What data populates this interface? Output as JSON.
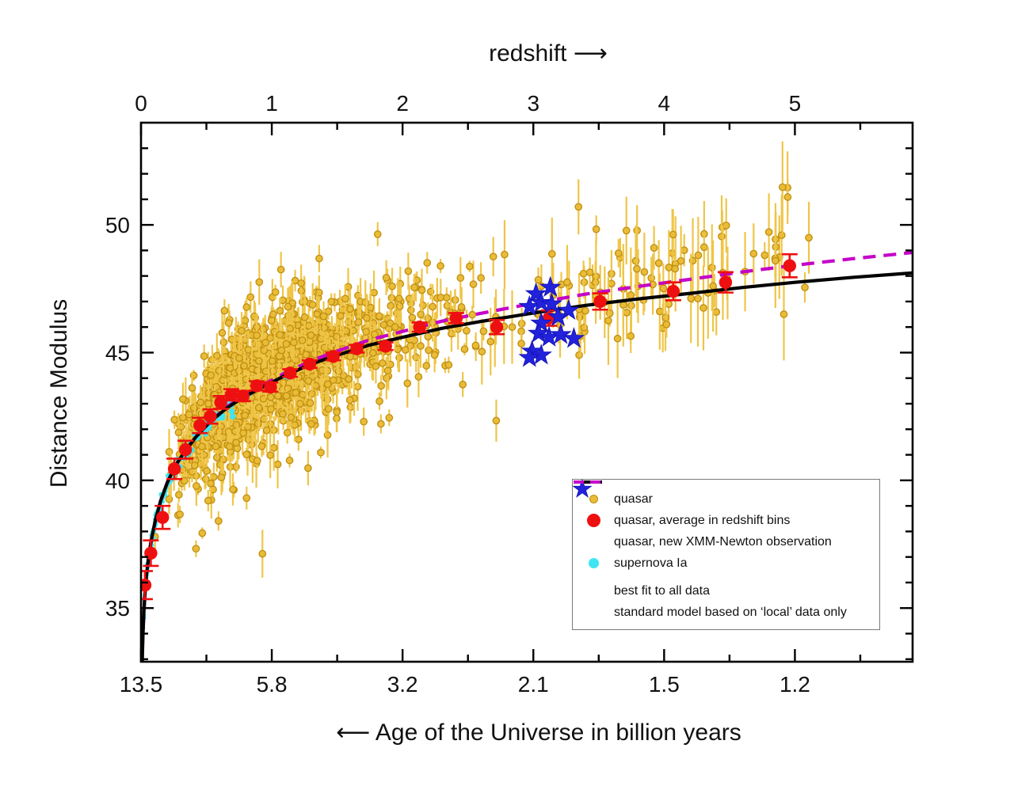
{
  "figure": {
    "top_axis_title": "redshift ⟶",
    "bottom_axis_title": "⟵  Age of the Universe in billion years",
    "y_axis_title": "Distance Modulus"
  },
  "legend": {
    "items": [
      {
        "label": "quasar",
        "marker": "small-dot",
        "color": "#E9BC38"
      },
      {
        "label": "quasar, average in redshift bins",
        "marker": "dot",
        "color": "#EE1010"
      },
      {
        "label": "quasar, new XMM-Newton observation",
        "marker": "star",
        "color": "#2222DD"
      },
      {
        "label": "supernova Ia",
        "marker": "dot",
        "color": "#3FE5F2"
      },
      {
        "label": "best fit to all data",
        "marker": "line",
        "color": "#000000"
      },
      {
        "label": "standard model based on ‘local’ data only",
        "marker": "dashed-line",
        "color": "#C400C8"
      }
    ]
  },
  "chart_data": {
    "type": "scatter",
    "title": "",
    "xlabel_top": "redshift",
    "xlabel_bottom": "Age of the Universe in billion years",
    "ylabel": "Distance Modulus",
    "xlim": [
      0,
      5.9
    ],
    "ylim": [
      32.9,
      54.0
    ],
    "grid": false,
    "legend_position": "lower right",
    "colors": {
      "quasar_fill": "#E9BC38",
      "quasar_edge": "#C08E10",
      "quasar_errbar": "#EFC548",
      "supernova": "#3FE5F2",
      "binned": "#EE1010",
      "star": "#2222DD",
      "star_edge": "#1515B8",
      "fit_line": "#000000",
      "standard_line": "#C400C8",
      "axis": "#000000"
    },
    "axes": {
      "top_ticks": [
        {
          "z": 0,
          "label": "0"
        },
        {
          "z": 1,
          "label": "1"
        },
        {
          "z": 2,
          "label": "2"
        },
        {
          "z": 3,
          "label": "3"
        },
        {
          "z": 4,
          "label": "4"
        },
        {
          "z": 5,
          "label": "5"
        }
      ],
      "bottom_ticks": [
        {
          "z": 0,
          "label": "13.5"
        },
        {
          "z": 1,
          "label": "5.8"
        },
        {
          "z": 2,
          "label": "3.2"
        },
        {
          "z": 3,
          "label": "2.1"
        },
        {
          "z": 4,
          "label": "1.5"
        },
        {
          "z": 5,
          "label": "1.2"
        }
      ],
      "x_minor": [
        0.5,
        1.5,
        2.5,
        3.5,
        4.5,
        5.5
      ],
      "y_major": [
        {
          "dm": 35,
          "label": "35"
        },
        {
          "dm": 40,
          "label": "40"
        },
        {
          "dm": 45,
          "label": "45"
        },
        {
          "dm": 50,
          "label": "50"
        }
      ],
      "y_minor_from": 33,
      "y_minor_to": 53
    },
    "fit_curve": {
      "name": "best fit to all data",
      "points": [
        [
          0.008,
          32.55
        ],
        [
          0.01,
          33.05
        ],
        [
          0.013,
          33.65
        ],
        [
          0.017,
          34.25
        ],
        [
          0.022,
          34.85
        ],
        [
          0.03,
          35.55
        ],
        [
          0.042,
          36.3
        ],
        [
          0.058,
          37.0
        ],
        [
          0.08,
          37.7
        ],
        [
          0.11,
          38.45
        ],
        [
          0.15,
          39.2
        ],
        [
          0.2,
          39.9
        ],
        [
          0.26,
          40.55
        ],
        [
          0.33,
          41.1
        ],
        [
          0.42,
          41.7
        ],
        [
          0.53,
          42.3
        ],
        [
          0.66,
          42.85
        ],
        [
          0.8,
          43.3
        ],
        [
          0.95,
          43.7
        ],
        [
          1.1,
          44.1
        ],
        [
          1.3,
          44.55
        ],
        [
          1.5,
          44.9
        ],
        [
          1.75,
          45.3
        ],
        [
          2.0,
          45.6
        ],
        [
          2.3,
          45.95
        ],
        [
          2.6,
          46.22
        ],
        [
          3.0,
          46.55
        ],
        [
          3.4,
          46.85
        ],
        [
          3.8,
          47.1
        ],
        [
          4.2,
          47.32
        ],
        [
          4.6,
          47.55
        ],
        [
          5.0,
          47.75
        ],
        [
          5.45,
          47.95
        ],
        [
          5.9,
          48.12
        ]
      ]
    },
    "standard_curve": {
      "name": "standard model based on 'local' data only",
      "points": [
        [
          0.008,
          32.55
        ],
        [
          0.01,
          33.05
        ],
        [
          0.013,
          33.65
        ],
        [
          0.017,
          34.25
        ],
        [
          0.022,
          34.85
        ],
        [
          0.03,
          35.55
        ],
        [
          0.042,
          36.3
        ],
        [
          0.058,
          37.0
        ],
        [
          0.08,
          37.7
        ],
        [
          0.11,
          38.45
        ],
        [
          0.15,
          39.2
        ],
        [
          0.2,
          39.9
        ],
        [
          0.26,
          40.55
        ],
        [
          0.33,
          41.1
        ],
        [
          0.42,
          41.7
        ],
        [
          0.53,
          42.32
        ],
        [
          0.66,
          42.89
        ],
        [
          0.8,
          43.36
        ],
        [
          0.95,
          43.78
        ],
        [
          1.1,
          44.2
        ],
        [
          1.3,
          44.68
        ],
        [
          1.5,
          45.06
        ],
        [
          1.75,
          45.5
        ],
        [
          2.0,
          45.83
        ],
        [
          2.3,
          46.23
        ],
        [
          2.6,
          46.54
        ],
        [
          3.0,
          46.93
        ],
        [
          3.4,
          47.29
        ],
        [
          3.8,
          47.59
        ],
        [
          4.2,
          47.87
        ],
        [
          4.6,
          48.16
        ],
        [
          5.0,
          48.42
        ],
        [
          5.45,
          48.68
        ],
        [
          5.9,
          48.92
        ]
      ]
    },
    "binned_quasars": {
      "name": "quasar, average in redshift bins",
      "points_z_dm_err": [
        [
          0.03,
          35.9,
          0.55
        ],
        [
          0.075,
          37.15,
          0.5
        ],
        [
          0.165,
          38.55,
          0.45
        ],
        [
          0.255,
          40.45,
          0.4
        ],
        [
          0.34,
          41.2,
          0.35
        ],
        [
          0.45,
          42.15,
          0.3
        ],
        [
          0.53,
          42.5,
          0.28
        ],
        [
          0.61,
          43.05,
          0.25
        ],
        [
          0.69,
          43.35,
          0.22
        ],
        [
          0.78,
          43.3,
          0.2
        ],
        [
          0.885,
          43.7,
          0.18
        ],
        [
          0.99,
          43.65,
          0.18
        ],
        [
          1.14,
          44.2,
          0.15
        ],
        [
          1.29,
          44.55,
          0.15
        ],
        [
          1.47,
          44.85,
          0.15
        ],
        [
          1.65,
          45.15,
          0.15
        ],
        [
          1.87,
          45.25,
          0.15
        ],
        [
          2.13,
          46.0,
          0.18
        ],
        [
          2.41,
          46.35,
          0.2
        ],
        [
          2.72,
          46.0,
          0.28
        ],
        [
          3.12,
          46.35,
          0.3
        ],
        [
          3.51,
          47.0,
          0.32
        ],
        [
          4.07,
          47.4,
          0.35
        ],
        [
          4.47,
          47.75,
          0.4
        ],
        [
          4.96,
          48.4,
          0.45
        ]
      ]
    },
    "xmm_stars": {
      "name": "quasar, new XMM-Newton observation",
      "points_z_dm": [
        [
          3.02,
          47.3
        ],
        [
          3.13,
          47.55
        ],
        [
          2.97,
          46.8
        ],
        [
          3.06,
          46.95
        ],
        [
          3.14,
          46.9
        ],
        [
          3.27,
          46.65
        ],
        [
          3.19,
          46.4
        ],
        [
          3.06,
          46.15
        ],
        [
          3.04,
          45.75
        ],
        [
          3.12,
          45.6
        ],
        [
          3.21,
          45.7
        ],
        [
          3.31,
          45.55
        ],
        [
          2.99,
          45.05
        ],
        [
          3.06,
          44.9
        ],
        [
          2.97,
          44.8
        ]
      ]
    },
    "quasar_cloud": {
      "name": "quasar",
      "seed": 1337,
      "n_main": 1180,
      "ln_z_mean": -0.05,
      "ln_z_sigma": 0.52,
      "z_min": 0.09,
      "z_max": 3.45,
      "dm_offset_mean": 0.55,
      "dm_sigma": 1.15,
      "frac_low_outlier": 0.13,
      "low_outlier_mean": -1.7,
      "low_outlier_sigma": 0.8,
      "n_tail": 85,
      "tail_z_min": 3.35,
      "tail_z_max": 5.15,
      "tail_dm_mean": 0.85,
      "tail_dm_sigma": 1.35,
      "err_min": 0.22,
      "err_max": 0.95,
      "err_hi_min": 0.5,
      "err_hi_max": 1.9,
      "dm_abs_min": 33.6,
      "dm_abs_max": 52.6
    },
    "supernova_cloud": {
      "name": "supernova Ia",
      "seed": 2468,
      "n": 250,
      "ln_z_mean": -2.0,
      "ln_z_sigma": 1.15,
      "z_min": 0.004,
      "z_max": 1.68,
      "dm_offset_mean": -0.04,
      "dm_sigma": 0.16
    }
  }
}
